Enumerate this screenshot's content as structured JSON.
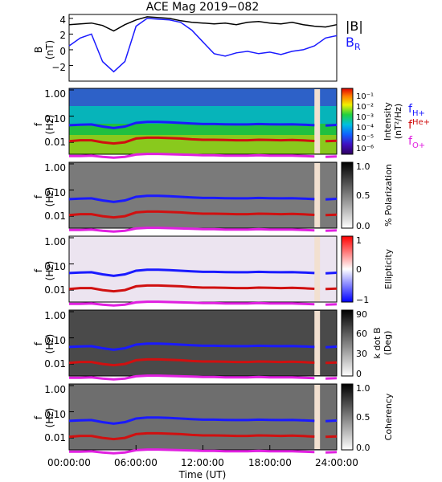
{
  "chart_data": [
    {
      "type": "line",
      "title": "ACE Mag 2019−082",
      "ylabel": "B",
      "yunit": "(nT)",
      "ylim": [
        -4,
        4.5
      ],
      "yticks": [
        "4",
        "2",
        "0",
        "−2"
      ],
      "series": [
        {
          "name": "|B|",
          "color": "#000000",
          "x": [
            0,
            1,
            2,
            3,
            4,
            5,
            6,
            7,
            8,
            9,
            10,
            11,
            12,
            13,
            14,
            15,
            16,
            17,
            18,
            19,
            20,
            21,
            22,
            23,
            24
          ],
          "values": [
            3.2,
            3.3,
            3.4,
            3.1,
            2.4,
            3.2,
            3.8,
            4.2,
            4.1,
            4.0,
            3.7,
            3.5,
            3.4,
            3.3,
            3.4,
            3.2,
            3.5,
            3.6,
            3.4,
            3.3,
            3.5,
            3.2,
            3.0,
            2.9,
            3.2
          ]
        },
        {
          "name": "B",
          "subscript": "R",
          "color": "#1a1aff",
          "x": [
            0,
            1,
            2,
            3,
            4,
            5,
            6,
            7,
            8,
            9,
            10,
            11,
            12,
            13,
            14,
            15,
            16,
            17,
            18,
            19,
            20,
            21,
            22,
            23,
            24
          ],
          "values": [
            0.5,
            1.5,
            2.0,
            -1.5,
            -2.8,
            -1.5,
            3.0,
            4.0,
            3.9,
            3.8,
            3.5,
            2.5,
            1.0,
            -0.5,
            -0.8,
            -0.4,
            -0.2,
            -0.5,
            -0.3,
            -0.6,
            -0.2,
            0.0,
            0.5,
            1.5,
            1.8
          ]
        }
      ]
    },
    {
      "type": "heatmap",
      "ylabel": "f",
      "yunit": "(Hz)",
      "yticks": [
        "1.00",
        "0.10",
        "0.01"
      ],
      "colorbar": {
        "label": "Intensity",
        "unit": "(nT²/Hz)",
        "ticks": [
          "10⁻¹",
          "10⁻²",
          "10⁻³",
          "10⁻⁴",
          "10⁻⁵",
          "10⁻⁶"
        ],
        "scale": "rainbow"
      },
      "legend": [
        {
          "base": "f",
          "sub": "H+",
          "color": "#1a1aff"
        },
        {
          "base": "f",
          "sub": "He+",
          "color": "#d01010"
        },
        {
          "base": "f",
          "sub": "O+",
          "color": "#e020e0"
        }
      ]
    },
    {
      "type": "heatmap",
      "ylabel": "f",
      "yunit": "(Hz)",
      "yticks": [
        "1.00",
        "0.10",
        "0.01"
      ],
      "colorbar": {
        "label": "% Polarization",
        "ticks": [
          "1.0",
          "0.5",
          "0.0"
        ],
        "scale": "gray"
      }
    },
    {
      "type": "heatmap",
      "ylabel": "f",
      "yunit": "(Hz)",
      "yticks": [
        "1.00",
        "0.10",
        "0.01"
      ],
      "colorbar": {
        "label": "Ellipticity",
        "ticks": [
          "1",
          "0",
          "−1"
        ],
        "scale": "bwr"
      }
    },
    {
      "type": "heatmap",
      "ylabel": "f",
      "yunit": "(Hz)",
      "yticks": [
        "1.00",
        "0.10",
        "0.01"
      ],
      "colorbar": {
        "label": "k dot B",
        "unit": "(Deg)",
        "ticks": [
          "90",
          "60",
          "30",
          "0"
        ],
        "scale": "gray"
      }
    },
    {
      "type": "heatmap",
      "ylabel": "f",
      "yunit": "(Hz)",
      "yticks": [
        "1.00",
        "0.10",
        "0.01"
      ],
      "colorbar": {
        "label": "Coherency",
        "ticks": [
          "1.0",
          "0.5",
          "0.0"
        ],
        "scale": "gray"
      },
      "xlabel": "Time (UT)",
      "xticks": [
        "00:00:00",
        "06:00:00",
        "12:00:00",
        "18:00:00",
        "24:00:00"
      ]
    }
  ],
  "gyro_lines": {
    "x": [
      0,
      1,
      2,
      3,
      4,
      5,
      6,
      7,
      8,
      9,
      10,
      11,
      12,
      13,
      14,
      15,
      16,
      17,
      18,
      19,
      20,
      21,
      22,
      23,
      24
    ],
    "fH": [
      0.045,
      0.047,
      0.048,
      0.04,
      0.035,
      0.04,
      0.055,
      0.06,
      0.06,
      0.058,
      0.055,
      0.052,
      0.05,
      0.05,
      0.049,
      0.048,
      0.048,
      0.05,
      0.049,
      0.048,
      0.049,
      0.047,
      0.045,
      0.044,
      0.046
    ],
    "fHe": [
      0.011,
      0.012,
      0.012,
      0.01,
      0.009,
      0.01,
      0.014,
      0.015,
      0.015,
      0.0145,
      0.014,
      0.013,
      0.0125,
      0.0125,
      0.0122,
      0.012,
      0.012,
      0.0125,
      0.0122,
      0.012,
      0.0122,
      0.0118,
      0.0112,
      0.011,
      0.0115
    ],
    "fO": [
      0.003,
      0.003,
      0.0031,
      0.0028,
      0.0026,
      0.0028,
      0.0034,
      0.0036,
      0.0036,
      0.0035,
      0.0034,
      0.0033,
      0.0032,
      0.0032,
      0.0031,
      0.0031,
      0.0031,
      0.0032,
      0.0031,
      0.0031,
      0.0031,
      0.003,
      0.0029,
      0.0028,
      0.0029
    ],
    "gap_hours": [
      22.0,
      22.5
    ]
  }
}
